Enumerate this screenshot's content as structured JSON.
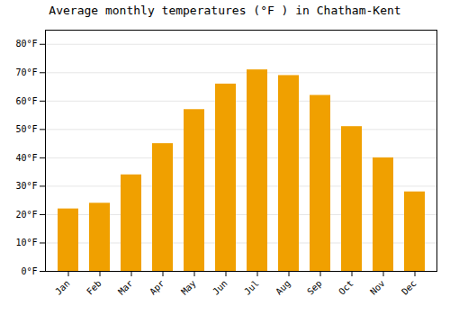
{
  "chart_data": {
    "type": "bar",
    "title": "Average monthly temperatures (°F ) in Chatham-Kent",
    "categories": [
      "Jan",
      "Feb",
      "Mar",
      "Apr",
      "May",
      "Jun",
      "Jul",
      "Aug",
      "Sep",
      "Oct",
      "Nov",
      "Dec"
    ],
    "values": [
      22,
      24,
      34,
      45,
      57,
      66,
      71,
      69,
      62,
      51,
      40,
      28
    ],
    "color": "#F0A000",
    "ylim": [
      0,
      85
    ],
    "yticks": [
      {
        "value": 0,
        "label": "0°F"
      },
      {
        "value": 10,
        "label": "10°F"
      },
      {
        "value": 20,
        "label": "20°F"
      },
      {
        "value": 30,
        "label": "30°F"
      },
      {
        "value": 40,
        "label": "40°F"
      },
      {
        "value": 50,
        "label": "50°F"
      },
      {
        "value": 60,
        "label": "60°F"
      },
      {
        "value": 70,
        "label": "70°F"
      },
      {
        "value": 80,
        "label": "80°F"
      }
    ],
    "grid": true
  }
}
